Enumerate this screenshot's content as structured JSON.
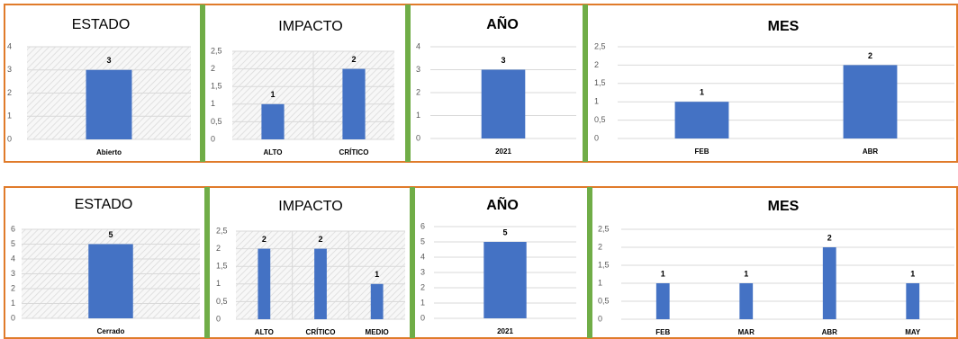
{
  "chart_data": [
    {
      "type": "bar",
      "title": "ESTADO",
      "categories": [
        "Abierto"
      ],
      "values": [
        3
      ],
      "color": "#4472c4",
      "ylim": [
        0,
        4
      ],
      "yticks": [
        0,
        1,
        2,
        3,
        4
      ],
      "grid": true
    },
    {
      "type": "bar",
      "title": "IMPACTO",
      "categories": [
        "ALTO",
        "CRÍTICO"
      ],
      "values": [
        1,
        2
      ],
      "color": "#4472c4",
      "ylim": [
        0,
        2.5
      ],
      "yticks": [
        0,
        {
          "value": 0.5,
          "label": "0,5"
        },
        1,
        {
          "value": 1.5,
          "label": "1,5"
        },
        2,
        {
          "value": 2.5,
          "label": "2,5"
        }
      ],
      "grid": true
    },
    {
      "type": "bar",
      "title": "AÑO",
      "categories": [
        "2021"
      ],
      "values": [
        3
      ],
      "color": "#4472c4",
      "ylim": [
        0,
        4
      ],
      "yticks": [
        0,
        1,
        2,
        3,
        4
      ],
      "grid": true
    },
    {
      "type": "bar",
      "title": "MES",
      "categories": [
        "FEB",
        "ABR"
      ],
      "values": [
        1,
        2
      ],
      "color": "#4472c4",
      "ylim": [
        0,
        2.5
      ],
      "yticks": [
        0,
        {
          "value": 0.5,
          "label": "0,5"
        },
        1,
        {
          "value": 1.5,
          "label": "1,5"
        },
        2,
        {
          "value": 2.5,
          "label": "2,5"
        }
      ],
      "grid": true
    },
    {
      "type": "bar",
      "title": "ESTADO",
      "categories": [
        "Cerrado"
      ],
      "values": [
        5
      ],
      "color": "#4472c4",
      "ylim": [
        0,
        6
      ],
      "yticks": [
        0,
        1,
        2,
        3,
        4,
        5,
        6
      ],
      "grid": true
    },
    {
      "type": "bar",
      "title": "IMPACTO",
      "categories": [
        "ALTO",
        "CRÍTICO",
        "MEDIO"
      ],
      "values": [
        2,
        2,
        1
      ],
      "color": "#4472c4",
      "ylim": [
        0,
        2.5
      ],
      "yticks": [
        0,
        {
          "value": 0.5,
          "label": "0,5"
        },
        1,
        {
          "value": 1.5,
          "label": "1,5"
        },
        2,
        {
          "value": 2.5,
          "label": "2,5"
        }
      ],
      "grid": true
    },
    {
      "type": "bar",
      "title": "AÑO",
      "categories": [
        "2021"
      ],
      "values": [
        5
      ],
      "color": "#4472c4",
      "ylim": [
        0,
        6
      ],
      "yticks": [
        0,
        1,
        2,
        3,
        4,
        5,
        6
      ],
      "grid": true
    },
    {
      "type": "bar",
      "title": "MES",
      "categories": [
        "FEB",
        "MAR",
        "ABR",
        "MAY"
      ],
      "values": [
        1,
        1,
        2,
        1
      ],
      "color": "#4472c4",
      "ylim": [
        0,
        2.5
      ],
      "yticks": [
        0,
        {
          "value": 0.5,
          "label": "0,5"
        },
        1,
        {
          "value": 1.5,
          "label": "1,5"
        },
        2,
        {
          "value": 2.5,
          "label": "2,5"
        }
      ],
      "grid": true
    }
  ]
}
